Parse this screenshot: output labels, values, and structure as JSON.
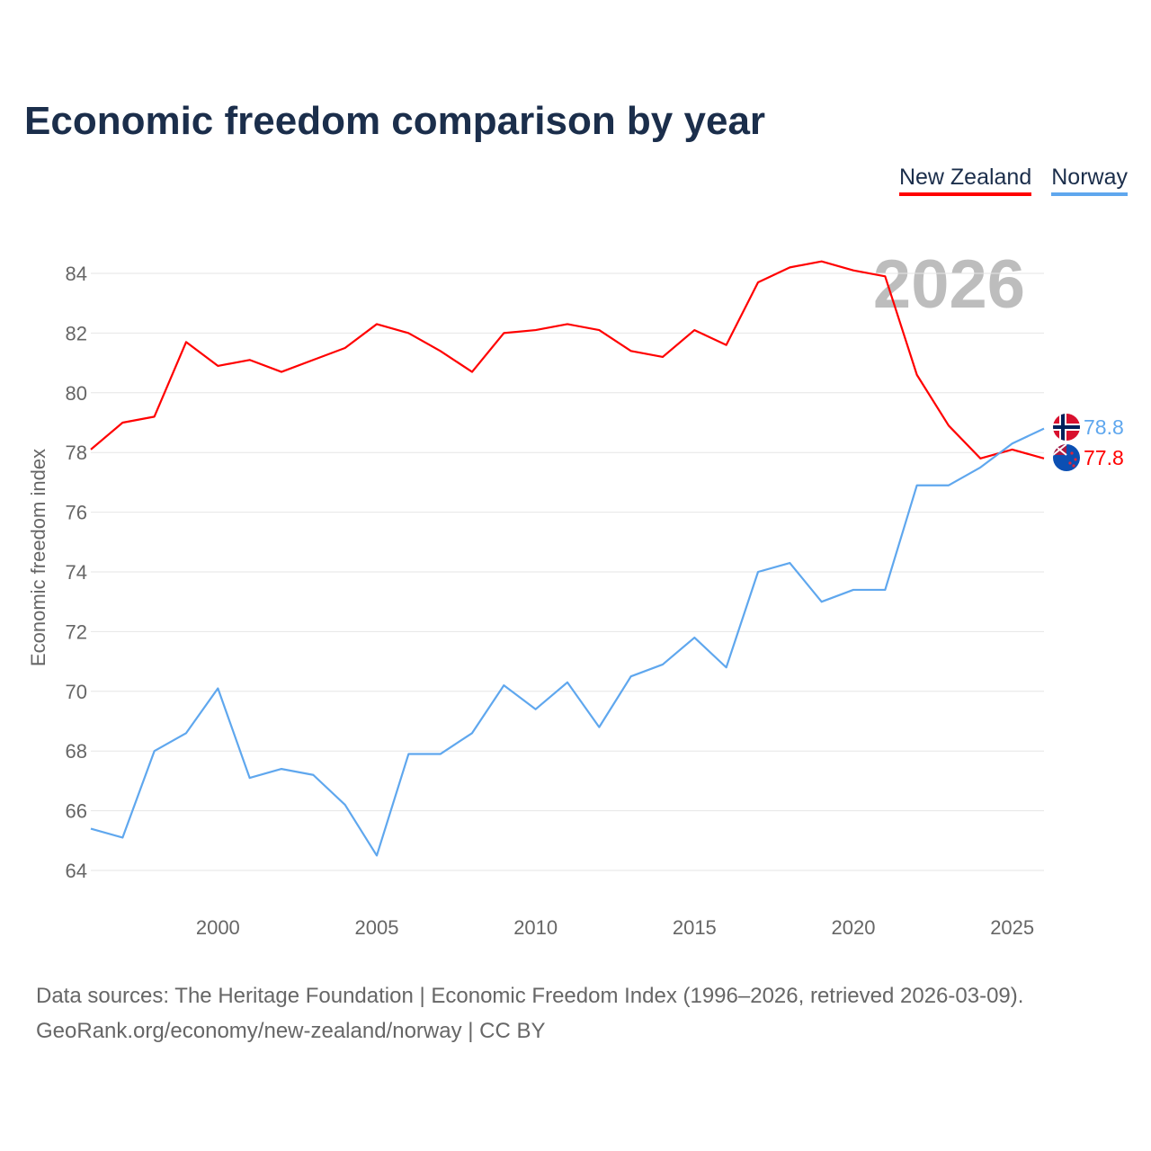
{
  "title": "Economic freedom comparison by year",
  "legend": [
    {
      "label": "New Zealand",
      "color": "#ff0000"
    },
    {
      "label": "Norway",
      "color": "#5fa7ee"
    }
  ],
  "source_lines": [
    "Data sources: The Heritage Foundation | Economic Freedom Index (1996–2026, retrieved 2026-03-09).",
    "GeoRank.org/economy/new-zealand/norway | CC BY"
  ],
  "chart_data": {
    "type": "line",
    "title": "Economic freedom comparison by year",
    "xlabel": "",
    "ylabel": "Economic freedom index",
    "year_watermark": "2026",
    "xlim": [
      1996,
      2026
    ],
    "ylim": [
      63,
      85
    ],
    "x_ticks": [
      2000,
      2005,
      2010,
      2015,
      2020,
      2025
    ],
    "y_ticks": [
      64,
      66,
      68,
      70,
      72,
      74,
      76,
      78,
      80,
      82,
      84
    ],
    "grid": true,
    "legend_position": "top-right",
    "x": [
      1996,
      1997,
      1998,
      1999,
      2000,
      2001,
      2002,
      2003,
      2004,
      2005,
      2006,
      2007,
      2008,
      2009,
      2010,
      2011,
      2012,
      2013,
      2014,
      2015,
      2016,
      2017,
      2018,
      2019,
      2020,
      2021,
      2022,
      2023,
      2024,
      2025,
      2026
    ],
    "series": [
      {
        "name": "New Zealand",
        "color": "#ff0000",
        "end_label": "77.8",
        "values": [
          78.1,
          79.0,
          79.2,
          81.7,
          80.9,
          81.1,
          80.7,
          81.1,
          81.5,
          82.3,
          82.0,
          81.4,
          80.7,
          82.0,
          82.1,
          82.3,
          82.1,
          81.4,
          81.2,
          82.1,
          81.6,
          83.7,
          84.2,
          84.4,
          84.1,
          83.9,
          80.6,
          78.9,
          77.8,
          78.1,
          77.8
        ]
      },
      {
        "name": "Norway",
        "color": "#5fa7ee",
        "end_label": "78.8",
        "values": [
          65.4,
          65.1,
          68.0,
          68.6,
          70.1,
          67.1,
          67.4,
          67.2,
          66.2,
          64.5,
          67.9,
          67.9,
          68.6,
          70.2,
          69.4,
          70.3,
          68.8,
          70.5,
          70.9,
          71.8,
          70.8,
          74.0,
          74.3,
          73.0,
          73.4,
          73.4,
          76.9,
          76.9,
          77.5,
          78.3,
          78.8
        ]
      }
    ]
  }
}
